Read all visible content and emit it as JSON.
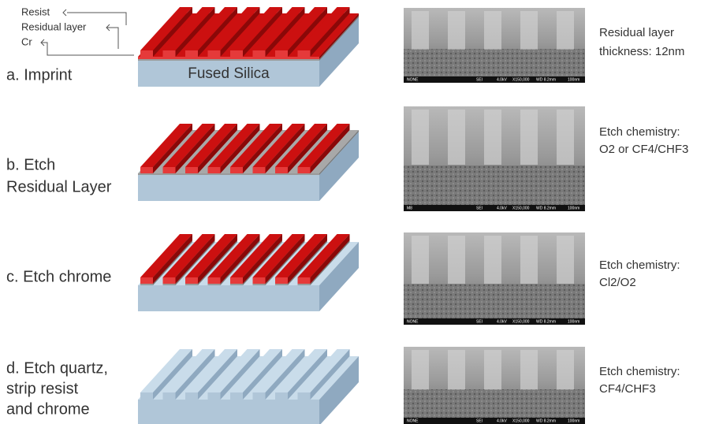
{
  "legend": {
    "labels": [
      "Resist",
      "Residual layer",
      "Cr"
    ]
  },
  "steps": [
    {
      "label": [
        "a. Imprint"
      ],
      "substrate_label": "Fused Silica",
      "sem_footer": [
        "NONE",
        "SEI",
        "4.0kV",
        "X150,000",
        "WD 8.2mm",
        "100nm"
      ],
      "note": [
        "Residual layer",
        "thickness: 12nm"
      ]
    },
    {
      "label": [
        "b. Etch",
        "Residual Layer"
      ],
      "sem_footer": [
        "M8",
        "SEI",
        "4.0kV",
        "X150,000",
        "WD 8.2mm",
        "100nm"
      ],
      "note": [
        "Etch chemistry:",
        "O2 or CF4/CHF3"
      ]
    },
    {
      "label": [
        "c. Etch chrome"
      ],
      "sem_footer": [
        "NONE",
        "SEI",
        "4.0kV",
        "X150,000",
        "WD 8.2mm",
        "100nm"
      ],
      "note": [
        "Etch chemistry:",
        "Cl2/O2"
      ]
    },
    {
      "label": [
        "d. Etch quartz,",
        "strip resist",
        "and chrome"
      ],
      "sem_footer": [
        "NONE",
        "SEI",
        "4.0kV",
        "X150,000",
        "WD 8.2mm",
        "100nm"
      ],
      "note": [
        "Etch chemistry:",
        "CF4/CHF3"
      ]
    }
  ]
}
